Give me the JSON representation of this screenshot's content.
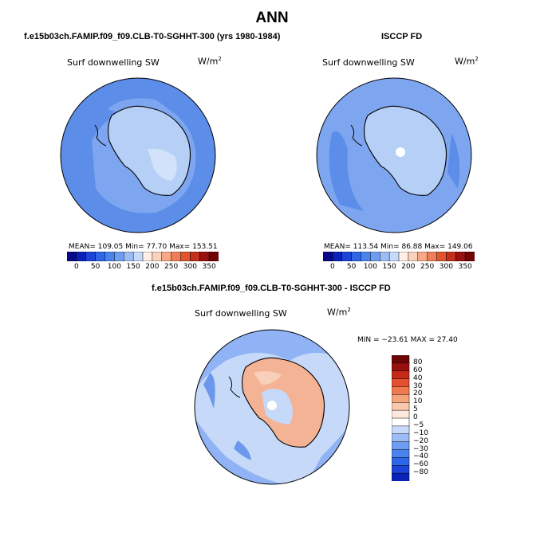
{
  "main_title": "ANN",
  "panels": [
    {
      "title": "f.e15b03ch.FAMIP.f09_f09.CLB-T0-SGHHT-300 (yrs 1980-1984)",
      "field": "Surf downwelling SW",
      "units": "W/m",
      "units_exp": "2",
      "stats": "MEAN= 109.05   Min=  77.70   Max= 153.51"
    },
    {
      "title": "ISCCP FD",
      "field": "Surf downwelling SW",
      "units": "W/m",
      "units_exp": "2",
      "stats": "MEAN= 113.54   Min=  86.88   Max= 149.06"
    },
    {
      "title": "f.e15b03ch.FAMIP.f09_f09.CLB-T0-SGHHT-300 - ISCCP FD",
      "field": "Surf downwelling SW",
      "units": "W/m",
      "units_exp": "2",
      "stats": "MIN = −23.61  MAX =  27.40"
    }
  ],
  "abs_colorbar": {
    "labels": [
      "0",
      "50",
      "100",
      "150",
      "200",
      "250",
      "300",
      "350"
    ],
    "colors": [
      "#08088a",
      "#0a22b8",
      "#1a45d8",
      "#2e66e8",
      "#4a82ee",
      "#6e9cf2",
      "#9dbcf6",
      "#c8dafa",
      "#fff0e6",
      "#fbd2bc",
      "#f7a886",
      "#ef7e58",
      "#e0542e",
      "#c2301a",
      "#981010",
      "#6e0606"
    ]
  },
  "diff_colorbar": {
    "labels": [
      "80",
      "60",
      "40",
      "30",
      "20",
      "10",
      "5",
      "0",
      "−5",
      "−10",
      "−20",
      "−30",
      "−40",
      "−60",
      "−80"
    ],
    "colors": [
      "#6e0606",
      "#9a1010",
      "#c42a16",
      "#e25030",
      "#f07a50",
      "#f6a47c",
      "#fac8ac",
      "#fde8dc",
      "#ffffff",
      "#c8dafa",
      "#9dbcf6",
      "#6e9cf2",
      "#4a82ee",
      "#2e66e8",
      "#1a45d8",
      "#0a22b8"
    ]
  },
  "map_colors": {
    "ocean_abs": "#5b8de9",
    "inner_abs": "#7ea6f0",
    "land_abs": "#b6cff6",
    "land_abs_light": "#d2e2fa",
    "ocean_obs": "#5b8de9",
    "land_obs": "#b6cff6",
    "diff_blue": "#8fb3f4",
    "diff_pale": "#c6d9f8",
    "diff_mid": "#6b98ec",
    "diff_red": "#f4b394",
    "diff_red_light": "#f8cfb9"
  }
}
